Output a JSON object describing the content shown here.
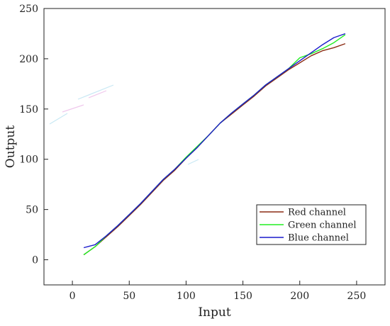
{
  "chart_data": {
    "type": "line",
    "title": "",
    "xlabel": "Input",
    "ylabel": "Output",
    "xlim": [
      -25,
      275
    ],
    "ylim": [
      -25,
      250
    ],
    "x_ticks": [
      0,
      50,
      100,
      150,
      200,
      250
    ],
    "y_ticks": [
      0,
      50,
      100,
      150,
      200,
      250
    ],
    "x_tick_labels": [
      "0",
      "50",
      "100",
      "150",
      "200",
      "250"
    ],
    "y_tick_labels": [
      "0",
      "50",
      "100",
      "150",
      "200",
      "250"
    ],
    "grid": false,
    "legend_position": "bottom-right",
    "series": [
      {
        "name": "Red channel",
        "color": "#8b2c14",
        "x": [
          10,
          20,
          30,
          40,
          50,
          60,
          70,
          80,
          90,
          100,
          110,
          120,
          130,
          140,
          150,
          160,
          170,
          180,
          190,
          200,
          210,
          220,
          230,
          240
        ],
        "y": [
          5,
          13,
          23,
          33,
          44,
          55,
          67,
          79,
          89,
          101,
          112,
          124,
          136,
          145,
          154,
          163,
          173,
          181,
          189,
          196,
          203,
          208,
          211,
          215
        ]
      },
      {
        "name": "Green channel",
        "color": "#22ee22",
        "x": [
          10,
          20,
          30,
          40,
          50,
          60,
          70,
          80,
          90,
          100,
          110,
          120,
          130,
          140,
          150,
          160,
          170,
          180,
          190,
          200,
          210,
          220,
          230,
          240
        ],
        "y": [
          5,
          13,
          24,
          34,
          45,
          56,
          68,
          80,
          90,
          102,
          113,
          124,
          136,
          146,
          155,
          164,
          174,
          182,
          190,
          201,
          205,
          210,
          216,
          224
        ]
      },
      {
        "name": "Blue channel",
        "color": "#1a1acc",
        "x": [
          10,
          20,
          30,
          40,
          50,
          60,
          70,
          80,
          90,
          100,
          110,
          120,
          130,
          140,
          150,
          160,
          170,
          180,
          190,
          200,
          210,
          220,
          230,
          240
        ],
        "y": [
          12,
          15,
          24,
          34,
          45,
          56,
          68,
          80,
          90,
          101,
          112,
          124,
          136,
          146,
          155,
          164,
          174,
          182,
          190,
          198,
          206,
          214,
          221,
          225
        ]
      }
    ]
  }
}
